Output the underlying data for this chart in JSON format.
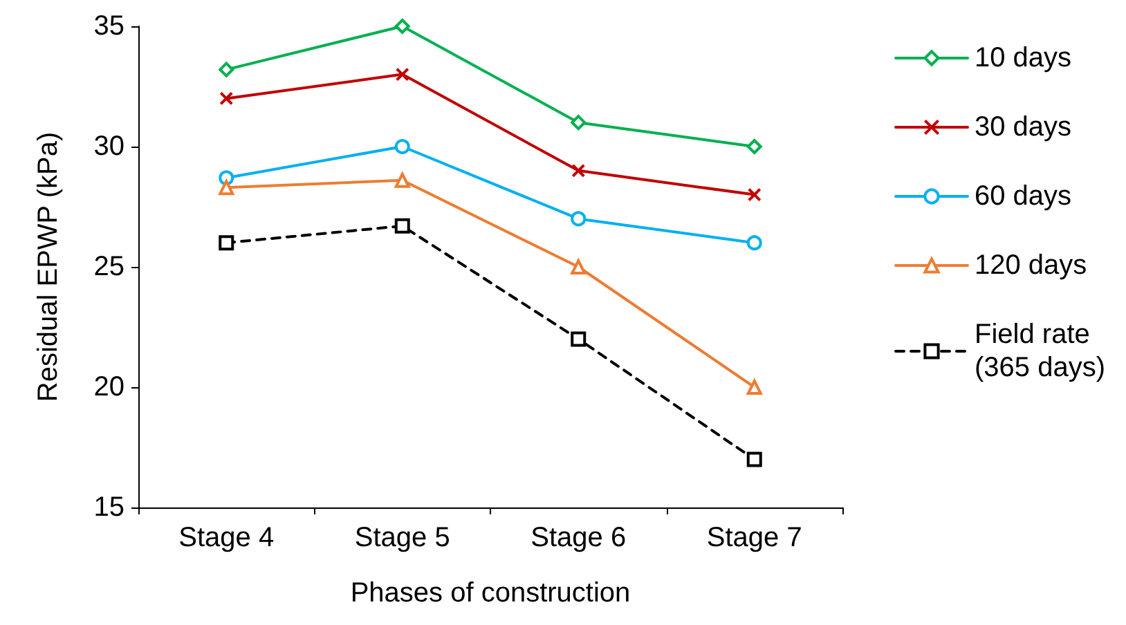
{
  "chart_data": {
    "type": "line",
    "xlabel": "Phases of construction",
    "ylabel": "Residual EPWP (kPa)",
    "categories": [
      "Stage 4",
      "Stage 5",
      "Stage 6",
      "Stage 7"
    ],
    "series": [
      {
        "name": "10 days",
        "color": "#00b050",
        "marker": "diamond",
        "line_style": "solid",
        "values": [
          33.2,
          35,
          31,
          30
        ]
      },
      {
        "name": "30 days",
        "color": "#c00000",
        "marker": "cross",
        "line_style": "solid",
        "values": [
          32,
          33,
          29,
          28
        ]
      },
      {
        "name": "60 days",
        "color": "#00b0f0",
        "marker": "circle",
        "line_style": "solid",
        "values": [
          28.7,
          30,
          27,
          26
        ]
      },
      {
        "name": "120 days",
        "color": "#ed7d31",
        "marker": "triangle",
        "line_style": "solid",
        "values": [
          28.3,
          28.6,
          25,
          20
        ]
      },
      {
        "name": "Field rate\n(365 days)",
        "color": "#000000",
        "marker": "square",
        "line_style": "dashed",
        "values": [
          26,
          26.7,
          22,
          17
        ]
      }
    ],
    "ylim": [
      15,
      35
    ],
    "yticks": [
      15,
      20,
      25,
      30,
      35
    ],
    "grid": false,
    "legend": "right"
  }
}
